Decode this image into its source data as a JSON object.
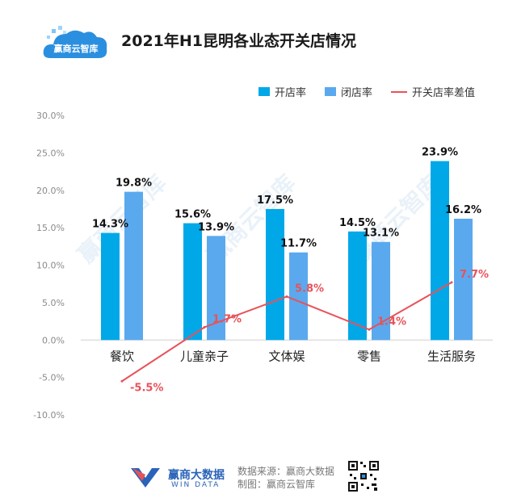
{
  "header": {
    "logo_text": "赢商云智库",
    "title": "2021年H1昆明各业态开关店情况"
  },
  "legend": [
    {
      "label": "开店率",
      "kind": "bar",
      "color": "#00a8e8"
    },
    {
      "label": "闭店率",
      "kind": "bar",
      "color": "#5aa9ee"
    },
    {
      "label": "开关店率差值",
      "kind": "line",
      "color": "#e8525a"
    }
  ],
  "watermark": "赢商云智库",
  "chart_data": {
    "type": "bar",
    "categories": [
      "餐饮",
      "儿童亲子",
      "文体娱",
      "零售",
      "生活服务"
    ],
    "series": [
      {
        "name": "开店率",
        "type": "bar",
        "values": [
          14.3,
          15.6,
          17.5,
          14.5,
          23.9
        ],
        "color": "#00a8e8"
      },
      {
        "name": "闭店率",
        "type": "bar",
        "values": [
          19.8,
          13.9,
          11.7,
          13.1,
          16.2
        ],
        "color": "#5aa9ee"
      },
      {
        "name": "开关店率差值",
        "type": "line",
        "values": [
          -5.5,
          1.7,
          5.8,
          1.4,
          7.7
        ],
        "color": "#e8525a"
      }
    ],
    "value_suffix": "%",
    "ylim": [
      -10,
      30
    ],
    "yticks": [
      -10,
      -5,
      0,
      5,
      10,
      15,
      20,
      25,
      30
    ],
    "ytick_labels": [
      "-10.0%",
      "-5.0%",
      "0.0%",
      "5.0%",
      "10.0%",
      "15.0%",
      "20.0%",
      "25.0%",
      "30.0%"
    ],
    "bar_labels": [
      [
        "14.3%",
        "15.6%",
        "17.5%",
        "14.5%",
        "23.9%"
      ],
      [
        "19.8%",
        "13.9%",
        "11.7%",
        "13.1%",
        "16.2%"
      ]
    ],
    "line_labels": [
      "-5.5%",
      "1.7%",
      "5.8%",
      "1.4%",
      "7.7%"
    ],
    "grid": false,
    "legend_position": "top-right"
  },
  "footer": {
    "brand_cn": "赢商大数据",
    "brand_en": "WIN DATA",
    "source_line1": "数据来源：赢商大数据",
    "source_line2": "制图：赢商云智库"
  }
}
